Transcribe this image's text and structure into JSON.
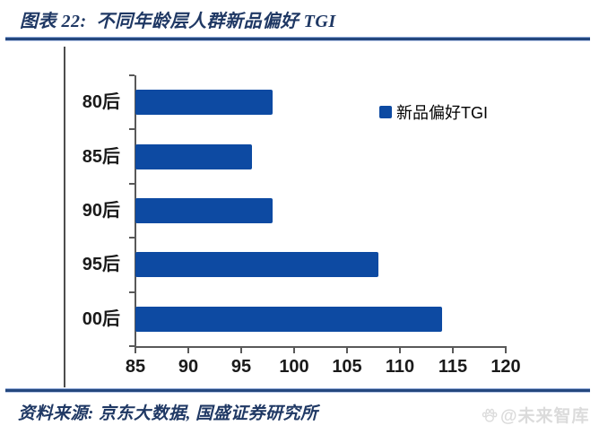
{
  "figure": {
    "title": "图表 22:  不同年龄层人群新品偏好 TGI",
    "source": "资料来源: 京东大数据, 国盛证券研究所",
    "watermark": "@未来智库",
    "title_color": "#1F3864",
    "rule_color": "#24477E"
  },
  "chart_data": {
    "type": "bar",
    "orientation": "horizontal",
    "title": "不同年龄层人群新品偏好 TGI",
    "categories": [
      "80后",
      "85后",
      "90后",
      "95后",
      "00后"
    ],
    "values": [
      98,
      96,
      98,
      108,
      114
    ],
    "series_name": "新品偏好TGI",
    "xlabel": "",
    "ylabel": "",
    "xlim": [
      85,
      120
    ],
    "xticks": [
      85,
      90,
      95,
      100,
      105,
      110,
      115,
      120
    ],
    "grid": false,
    "legend_position": "upper-right",
    "bar_color": "#0D4AA2",
    "axis_color": "#595959"
  }
}
